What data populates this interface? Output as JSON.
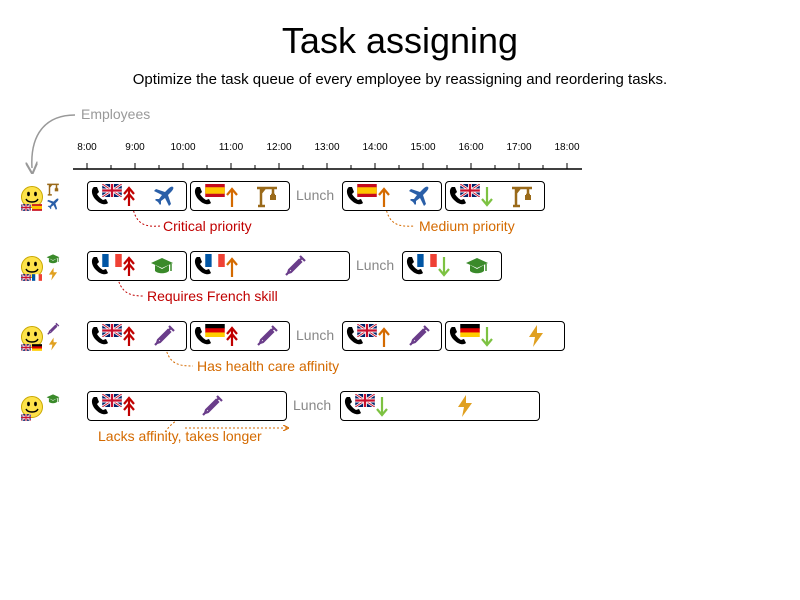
{
  "title": "Task assigning",
  "subtitle": "Optimize the task queue of every employee by reassigning and reordering tasks.",
  "employees_label": "Employees",
  "timeline": [
    "8:00",
    "9:00",
    "10:00",
    "11:00",
    "12:00",
    "13:00",
    "14:00",
    "15:00",
    "16:00",
    "17:00",
    "18:00"
  ],
  "lunch_label": "Lunch",
  "callouts": {
    "critical": "Critical priority",
    "medium": "Medium priority",
    "french": "Requires French skill",
    "health": "Has health care affinity",
    "lacks": "Lacks affinity, takes longer"
  },
  "colors": {
    "critical": "#c00000",
    "high": "#c00000",
    "medium": "#d46a00",
    "low": "#7dc242",
    "airplane": "#2a5fa8",
    "crane": "#9a6a1a",
    "graduation": "#3a8a2a",
    "syringe": "#6a3d8a",
    "lightning": "#e0a020"
  },
  "employees": [
    {
      "skills": [
        "uk-flag",
        "es-flag"
      ],
      "affinities": [
        "crane-icon",
        "airplane-icon"
      ]
    },
    {
      "skills": [
        "uk-flag",
        "fr-flag"
      ],
      "affinities": [
        "graduation-icon",
        "lightning-icon"
      ]
    },
    {
      "skills": [
        "uk-flag",
        "de-flag"
      ],
      "affinities": [
        "syringe-icon",
        "lightning-icon"
      ]
    },
    {
      "skills": [
        "uk-flag"
      ],
      "affinities": [
        "graduation-icon"
      ]
    }
  ],
  "tasks": [
    [
      {
        "flag": "uk",
        "priority": "critical",
        "affinity": "airplane"
      },
      {
        "flag": "es",
        "priority": "medium",
        "affinity": "crane"
      },
      {
        "flag": "es",
        "priority": "medium",
        "affinity": "airplane"
      },
      {
        "flag": "uk",
        "priority": "low",
        "affinity": "crane"
      }
    ],
    [
      {
        "flag": "fr",
        "priority": "critical",
        "affinity": "graduation"
      },
      {
        "flag": "fr",
        "priority": "medium",
        "affinity": "syringe"
      },
      {
        "flag": "fr",
        "priority": "low",
        "affinity": "graduation"
      }
    ],
    [
      {
        "flag": "uk",
        "priority": "high",
        "affinity": "syringe"
      },
      {
        "flag": "de",
        "priority": "high",
        "affinity": "syringe"
      },
      {
        "flag": "uk",
        "priority": "medium",
        "affinity": "syringe"
      },
      {
        "flag": "de",
        "priority": "low",
        "affinity": "lightning"
      }
    ],
    [
      {
        "flag": "uk",
        "priority": "high",
        "affinity": "syringe"
      },
      {
        "flag": "uk",
        "priority": "low",
        "affinity": "lightning"
      }
    ]
  ]
}
